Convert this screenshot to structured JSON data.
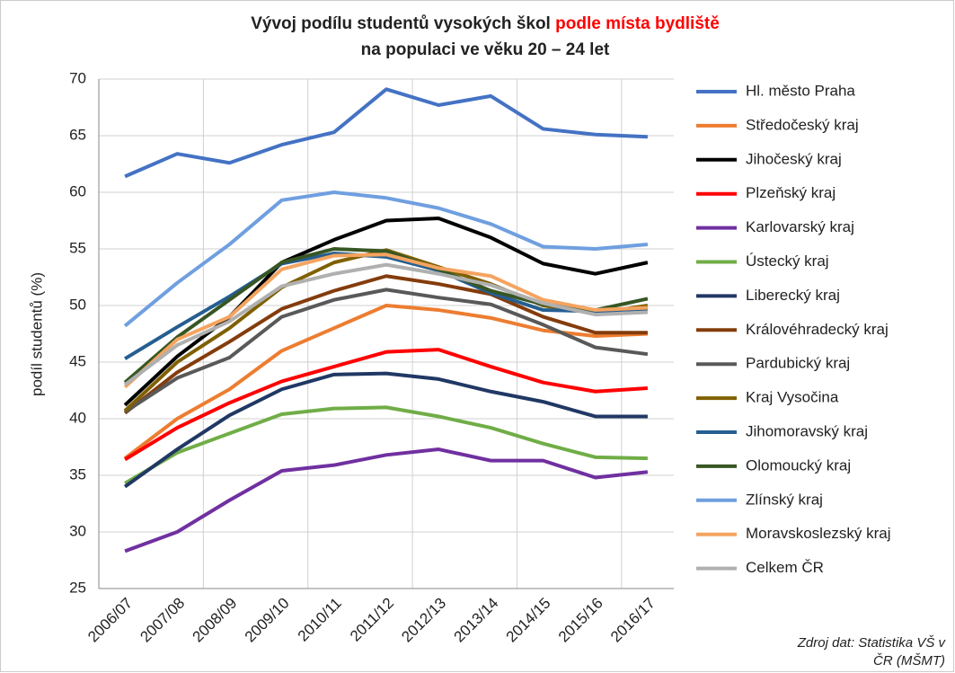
{
  "chart_data": {
    "type": "line",
    "title": "Vývoj podílu studentů vysokých škol",
    "title_highlight": "podle místa bydliště",
    "title_line2": "na populaci ve věku 20 – 24 let",
    "ylabel": "podíl studentů (%)",
    "source": [
      "Zdroj dat: Statistika VŠ v",
      "ČR (MŠMT)"
    ],
    "categories": [
      "2006/07",
      "2007/08",
      "2008/09",
      "2009/10",
      "2010/11",
      "2011/12",
      "2012/13",
      "2013/14",
      "2014/15",
      "2015/16",
      "2016/17"
    ],
    "ylim": [
      25,
      70
    ],
    "yticks": [
      25,
      30,
      35,
      40,
      45,
      50,
      55,
      60,
      65,
      70
    ],
    "grid": true,
    "legend": "right",
    "series": [
      {
        "name": "Hl. město Praha",
        "color": "#4472c4",
        "values": [
          61.4,
          63.4,
          62.6,
          64.2,
          65.3,
          69.1,
          67.7,
          68.5,
          65.6,
          65.1,
          64.9
        ]
      },
      {
        "name": "Středočeský kraj",
        "color": "#ed7d31",
        "values": [
          36.5,
          40,
          42.6,
          46,
          48,
          50,
          49.6,
          48.9,
          47.8,
          47.3,
          47.5
        ]
      },
      {
        "name": "Jihočeský kraj",
        "color": "#000000",
        "values": [
          41.2,
          45.5,
          49,
          53.8,
          55.8,
          57.5,
          57.7,
          56,
          53.7,
          52.8,
          53.8
        ]
      },
      {
        "name": "Plzeňský kraj",
        "color": "#ff0000",
        "values": [
          36.4,
          39.2,
          41.4,
          43.3,
          44.6,
          45.9,
          46.1,
          44.6,
          43.2,
          42.4,
          42.7
        ]
      },
      {
        "name": "Karlovarský kraj",
        "color": "#7030a0",
        "values": [
          28.3,
          30,
          32.8,
          35.4,
          35.9,
          36.8,
          37.3,
          36.3,
          36.3,
          34.8,
          35.3
        ]
      },
      {
        "name": "Ústecký kraj",
        "color": "#70ad47",
        "values": [
          34.3,
          37,
          38.7,
          40.4,
          40.9,
          41,
          40.2,
          39.2,
          37.8,
          36.6,
          36.5
        ]
      },
      {
        "name": "Liberecký kraj",
        "color": "#203864",
        "values": [
          34,
          37.3,
          40.3,
          42.6,
          43.9,
          44,
          43.5,
          42.4,
          41.5,
          40.2,
          40.2
        ]
      },
      {
        "name": "Královéhradecký kraj",
        "color": "#843c0c",
        "values": [
          40.5,
          44.1,
          46.8,
          49.7,
          51.3,
          52.6,
          51.9,
          51,
          49,
          47.6,
          47.6
        ]
      },
      {
        "name": "Pardubický kraj",
        "color": "#595959",
        "values": [
          40.6,
          43.6,
          45.4,
          49,
          50.5,
          51.4,
          50.7,
          50.1,
          48.3,
          46.3,
          45.7
        ]
      },
      {
        "name": "Kraj Vysočina",
        "color": "#7f6000",
        "values": [
          40.7,
          45,
          48,
          51.6,
          53.8,
          54.9,
          53.4,
          51.9,
          50,
          49.3,
          50
        ]
      },
      {
        "name": "Jihomoravský kraj",
        "color": "#255e91",
        "values": [
          45.3,
          48.1,
          50.8,
          53.7,
          54.6,
          54.3,
          53.1,
          51.1,
          49.6,
          49.5,
          49.7
        ]
      },
      {
        "name": "Olomoucký kraj",
        "color": "#375623",
        "values": [
          43.2,
          47.2,
          50.5,
          53.8,
          55,
          54.8,
          53.2,
          51.3,
          50.1,
          49.6,
          50.6
        ]
      },
      {
        "name": "Zlínský kraj",
        "color": "#6f9fe0",
        "values": [
          48.2,
          52,
          55.4,
          59.3,
          60,
          59.5,
          58.6,
          57.2,
          55.2,
          55,
          55.4
        ]
      },
      {
        "name": "Moravskoslezský kraj",
        "color": "#f4a460",
        "values": [
          42.8,
          47,
          49,
          53.2,
          54.4,
          54.5,
          53.3,
          52.6,
          50.5,
          49.6,
          49.8
        ]
      },
      {
        "name": "Celkem ČR",
        "color": "#b0b0b0",
        "values": [
          43,
          46.5,
          48.6,
          51.7,
          52.8,
          53.6,
          52.8,
          51.8,
          50.2,
          49.2,
          49.4
        ]
      }
    ]
  }
}
